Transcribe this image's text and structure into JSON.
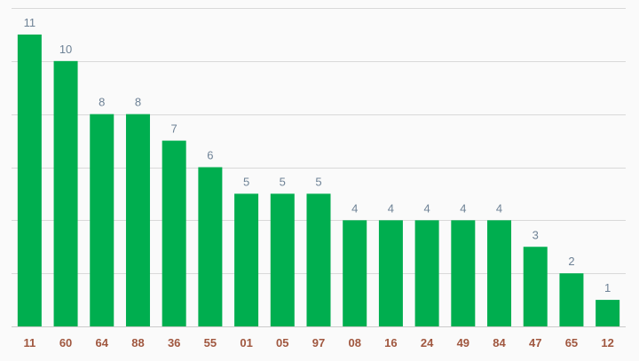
{
  "chart_data": {
    "type": "bar",
    "categories": [
      "11",
      "60",
      "64",
      "88",
      "36",
      "55",
      "01",
      "05",
      "97",
      "08",
      "16",
      "24",
      "49",
      "84",
      "47",
      "65",
      "12"
    ],
    "values": [
      11,
      10,
      8,
      8,
      7,
      6,
      5,
      5,
      5,
      4,
      4,
      4,
      4,
      4,
      3,
      2,
      1
    ],
    "title": "",
    "xlabel": "",
    "ylabel": "",
    "ylim": [
      0,
      12
    ],
    "grid": true,
    "gridlines_every": 2,
    "data_labels": true,
    "colors": {
      "bar": "#00ae4f",
      "data_label": "#6e8296",
      "tick_label": "#a0573f",
      "grid": "#d9d9d9",
      "background": "#fafafa"
    }
  }
}
